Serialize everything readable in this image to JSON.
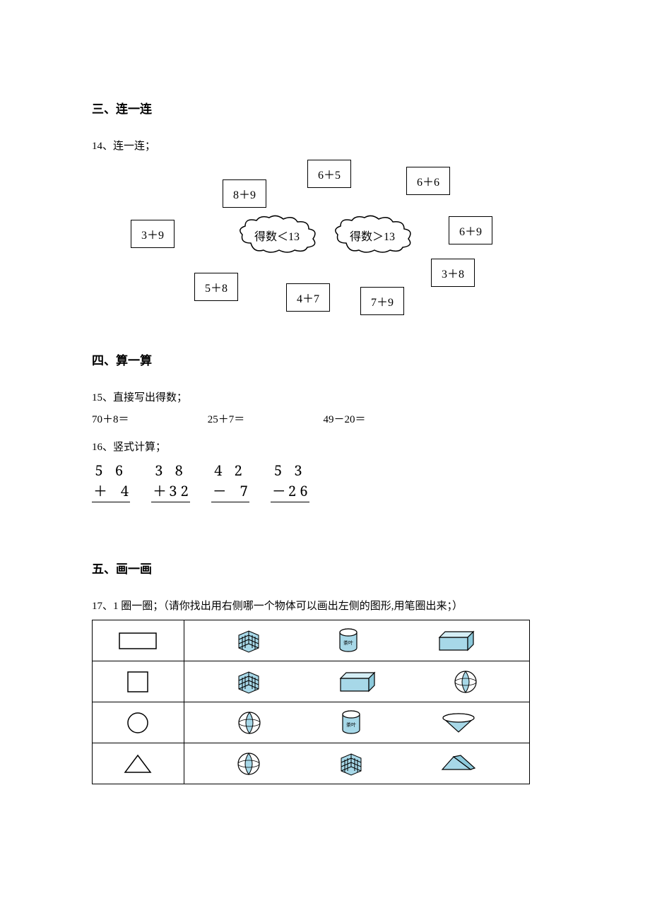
{
  "colors": {
    "ink": "#000000",
    "shape_fill": "#a7d8e8",
    "shape_fill2": "#b6e0ec",
    "grid_line": "#000000",
    "bg": "#ffffff"
  },
  "fonts": {
    "section_title_size": 17,
    "body_size": 15,
    "box_text_size": 16,
    "vmath_size": 20
  },
  "section3": {
    "title": "三、连一连",
    "q14_label": "14、连一连；",
    "boxes": {
      "b_8_9": "8＋9",
      "b_6_5": "6＋5",
      "b_6_6": "6＋6",
      "b_3_9": "3＋9",
      "b_6_9": "6＋9",
      "b_5_8": "5＋8",
      "b_4_7": "4＋7",
      "b_7_9": "7＋9",
      "b_3_8": "3＋8"
    },
    "clouds": {
      "lt": "得数＜13",
      "gt": "得数＞13"
    }
  },
  "section4": {
    "title": "四、算一算",
    "q15_label": "15、直接写出得数；",
    "q15_items": [
      "70＋8＝",
      "25＋7＝",
      "49－20＝"
    ],
    "q16_label": "16、竖式计算；",
    "q16_items": [
      {
        "top": "5 6",
        "sign": "＋",
        "bot": "4"
      },
      {
        "top": "3 8",
        "sign": "＋",
        "bot": "3 2"
      },
      {
        "top": "4 2",
        "sign": "－",
        "bot": "7"
      },
      {
        "top": "5 3",
        "sign": "－",
        "bot": "2 6"
      }
    ]
  },
  "section5": {
    "title": "五、画一画",
    "q17_label": "17、1 圈一圈；（请你找出用右侧哪一个物体可以画出左侧的图形,用笔圈出来；）",
    "rows": [
      {
        "left_shape": "rectangle",
        "objects": [
          "rubik",
          "cylinder",
          "cuboid"
        ]
      },
      {
        "left_shape": "square",
        "objects": [
          "rubik",
          "cuboid",
          "sphere"
        ]
      },
      {
        "left_shape": "circle",
        "objects": [
          "sphere",
          "cylinder",
          "cone"
        ]
      },
      {
        "left_shape": "triangle",
        "objects": [
          "sphere",
          "rubik",
          "prism"
        ]
      }
    ]
  }
}
